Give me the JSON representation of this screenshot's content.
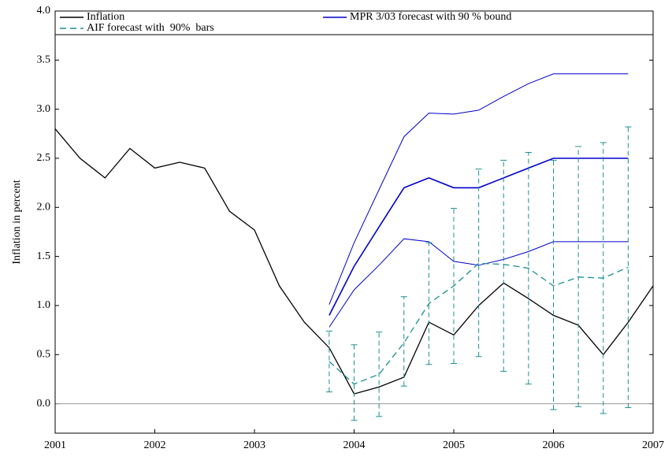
{
  "chart_data": {
    "type": "line",
    "ylabel": "Inflation in percent",
    "xlim": [
      2001,
      2007
    ],
    "ylim": [
      -0.3,
      4.0
    ],
    "xticks": [
      2001,
      2002,
      2003,
      2004,
      2005,
      2006,
      2007
    ],
    "yticks": [
      {
        "value": 0,
        "label": "0.0"
      },
      {
        "value": 0.5,
        "label": "0.5"
      },
      {
        "value": 1,
        "label": "1.0"
      },
      {
        "value": 1.5,
        "label": "1.5"
      },
      {
        "value": 2,
        "label": "2.0"
      },
      {
        "value": 2.5,
        "label": "2.5"
      },
      {
        "value": 3,
        "label": "3.0"
      },
      {
        "value": 3.5,
        "label": "3.5"
      },
      {
        "value": 4,
        "label": "4.0"
      }
    ],
    "hline": 0,
    "series": [
      {
        "name": "Inflation",
        "color": "#000000",
        "style": "solid",
        "x": [
          2001,
          2001.25,
          2001.5,
          2001.75,
          2002,
          2002.25,
          2002.5,
          2002.75,
          2003,
          2003.25,
          2003.5,
          2003.75,
          2004,
          2004.25,
          2004.5,
          2004.75,
          2005,
          2005.25,
          2005.5,
          2005.75,
          2006,
          2006.25,
          2006.5,
          2006.75,
          2007
        ],
        "values": [
          2.8,
          2.5,
          2.3,
          2.6,
          2.4,
          2.46,
          2.4,
          1.96,
          1.77,
          1.2,
          0.83,
          0.57,
          0.1,
          0.17,
          0.27,
          0.83,
          0.7,
          1.0,
          1.23,
          1.07,
          0.9,
          0.8,
          0.5,
          0.83,
          1.2
        ]
      },
      {
        "name": "MPR 3/03 forecast with 90 % bound",
        "color": "#0000cc",
        "style": "solid",
        "bounds": "band",
        "x": [
          2003.75,
          2004,
          2004.25,
          2004.5,
          2004.75,
          2005,
          2005.25,
          2005.5,
          2005.75,
          2006,
          2006.25,
          2006.5,
          2006.75
        ],
        "values": [
          0.9,
          1.4,
          1.8,
          2.2,
          2.3,
          2.2,
          2.2,
          2.3,
          2.4,
          2.5,
          2.5,
          2.5,
          2.5
        ],
        "lower": [
          0.78,
          1.16,
          1.41,
          1.68,
          1.65,
          1.45,
          1.41,
          1.47,
          1.55,
          1.65,
          1.65,
          1.65,
          1.65
        ],
        "upper": [
          1.01,
          1.64,
          2.18,
          2.72,
          2.96,
          2.95,
          2.99,
          3.13,
          3.26,
          3.36,
          3.36,
          3.36,
          3.36
        ]
      },
      {
        "name": "AIF forecast with  90%  bars",
        "color": "#1a8f8f",
        "style": "dashed",
        "bounds": "bars",
        "x": [
          2003.75,
          2004,
          2004.25,
          2004.5,
          2004.75,
          2005,
          2005.25,
          2005.5,
          2005.75,
          2006,
          2006.25,
          2006.5,
          2006.75
        ],
        "values": [
          0.43,
          0.2,
          0.3,
          0.62,
          1.02,
          1.2,
          1.43,
          1.42,
          1.38,
          1.2,
          1.29,
          1.28,
          1.39
        ],
        "lower": [
          0.12,
          -0.17,
          -0.13,
          0.18,
          0.4,
          0.41,
          0.48,
          0.33,
          0.2,
          -0.06,
          -0.03,
          -0.1,
          -0.04
        ],
        "upper": [
          0.74,
          0.6,
          0.73,
          1.09,
          1.64,
          1.99,
          2.39,
          2.48,
          2.56,
          2.48,
          2.62,
          2.66,
          2.82
        ]
      }
    ]
  }
}
